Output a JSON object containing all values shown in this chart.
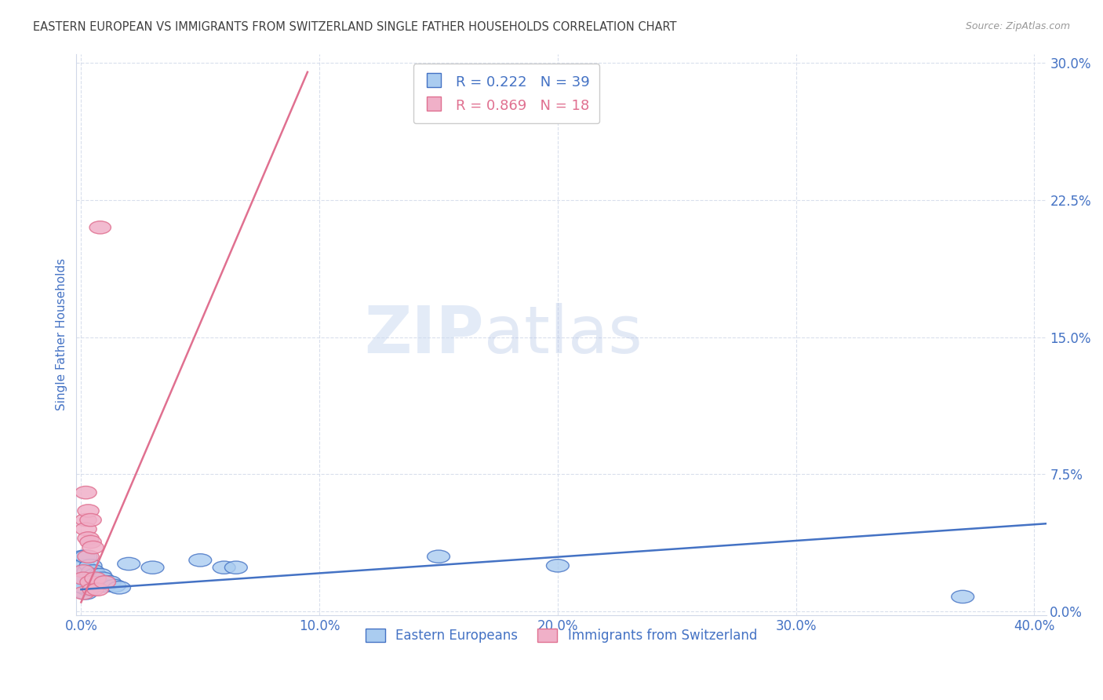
{
  "title": "EASTERN EUROPEAN VS IMMIGRANTS FROM SWITZERLAND SINGLE FATHER HOUSEHOLDS CORRELATION CHART",
  "source": "Source: ZipAtlas.com",
  "ylabel": "Single Father Households",
  "ytick_vals": [
    0.0,
    0.075,
    0.15,
    0.225,
    0.3
  ],
  "xtick_vals": [
    0.0,
    0.1,
    0.2,
    0.3,
    0.4
  ],
  "xlim": [
    -0.002,
    0.405
  ],
  "ylim": [
    -0.002,
    0.305
  ],
  "watermark_zip": "ZIP",
  "watermark_atlas": "atlas",
  "legend_blue_label": "Eastern Europeans",
  "legend_pink_label": "Immigrants from Switzerland",
  "blue_R": "0.222",
  "blue_N": "39",
  "pink_R": "0.869",
  "pink_N": "18",
  "blue_color": "#aaccf0",
  "pink_color": "#f0b0c8",
  "blue_edge_color": "#4472c4",
  "pink_edge_color": "#e07090",
  "blue_line_color": "#4472c4",
  "pink_line_color": "#e07090",
  "title_color": "#404040",
  "axis_label_color": "#4472c4",
  "tick_color": "#4472c4",
  "blue_scatter": [
    [
      0.001,
      0.03
    ],
    [
      0.001,
      0.025
    ],
    [
      0.001,
      0.02
    ],
    [
      0.001,
      0.016
    ],
    [
      0.002,
      0.03
    ],
    [
      0.002,
      0.022
    ],
    [
      0.002,
      0.018
    ],
    [
      0.002,
      0.014
    ],
    [
      0.002,
      0.01
    ],
    [
      0.003,
      0.022
    ],
    [
      0.003,
      0.018
    ],
    [
      0.003,
      0.015
    ],
    [
      0.003,
      0.012
    ],
    [
      0.004,
      0.025
    ],
    [
      0.004,
      0.02
    ],
    [
      0.004,
      0.016
    ],
    [
      0.005,
      0.022
    ],
    [
      0.005,
      0.018
    ],
    [
      0.005,
      0.014
    ],
    [
      0.006,
      0.02
    ],
    [
      0.006,
      0.016
    ],
    [
      0.007,
      0.018
    ],
    [
      0.007,
      0.015
    ],
    [
      0.008,
      0.02
    ],
    [
      0.008,
      0.016
    ],
    [
      0.009,
      0.018
    ],
    [
      0.01,
      0.016
    ],
    [
      0.01,
      0.014
    ],
    [
      0.012,
      0.016
    ],
    [
      0.014,
      0.014
    ],
    [
      0.016,
      0.013
    ],
    [
      0.02,
      0.026
    ],
    [
      0.03,
      0.024
    ],
    [
      0.05,
      0.028
    ],
    [
      0.06,
      0.024
    ],
    [
      0.065,
      0.024
    ],
    [
      0.15,
      0.03
    ],
    [
      0.2,
      0.025
    ],
    [
      0.37,
      0.008
    ]
  ],
  "pink_scatter": [
    [
      0.001,
      0.022
    ],
    [
      0.001,
      0.018
    ],
    [
      0.001,
      0.01
    ],
    [
      0.002,
      0.065
    ],
    [
      0.002,
      0.05
    ],
    [
      0.002,
      0.045
    ],
    [
      0.003,
      0.055
    ],
    [
      0.003,
      0.04
    ],
    [
      0.003,
      0.03
    ],
    [
      0.004,
      0.05
    ],
    [
      0.004,
      0.038
    ],
    [
      0.004,
      0.016
    ],
    [
      0.005,
      0.035
    ],
    [
      0.005,
      0.012
    ],
    [
      0.006,
      0.018
    ],
    [
      0.007,
      0.012
    ],
    [
      0.008,
      0.21
    ],
    [
      0.01,
      0.016
    ]
  ],
  "blue_line_x": [
    0.0,
    0.405
  ],
  "blue_line_y": [
    0.012,
    0.048
  ],
  "pink_line_x": [
    0.0,
    0.095
  ],
  "pink_line_y": [
    0.005,
    0.295
  ]
}
